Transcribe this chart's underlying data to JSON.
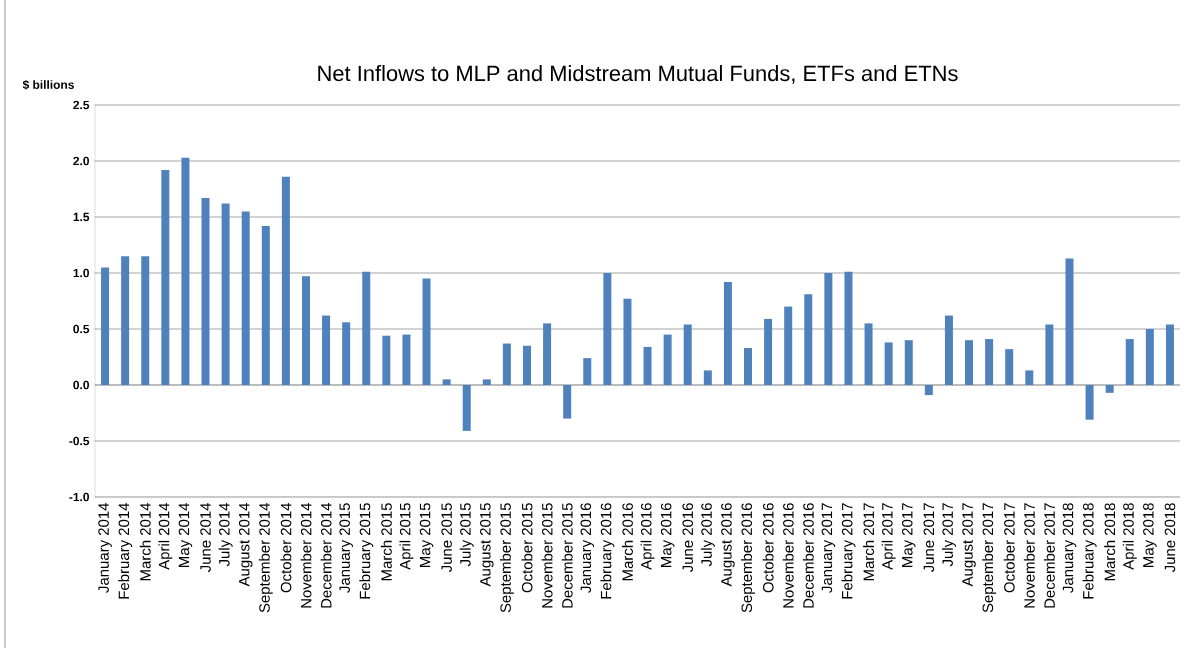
{
  "chart_data": {
    "type": "bar",
    "title": "Net Inflows to MLP and Midstream Mutual Funds, ETFs and ETNs",
    "ylabel": "$ billions",
    "categories": [
      "January 2014",
      "February 2014",
      "March 2014",
      "April 2014",
      "May 2014",
      "June 2014",
      "July 2014",
      "August 2014",
      "September 2014",
      "October 2014",
      "November 2014",
      "December 2014",
      "January 2015",
      "February 2015",
      "March 2015",
      "April 2015",
      "May 2015",
      "June 2015",
      "July 2015",
      "August 2015",
      "September 2015",
      "October 2015",
      "November 2015",
      "December 2015",
      "January 2016",
      "February 2016",
      "March 2016",
      "April 2016",
      "May 2016",
      "June 2016",
      "July 2016",
      "August 2016",
      "September 2016",
      "October 2016",
      "November 2016",
      "December 2016",
      "January 2017",
      "February 2017",
      "March 2017",
      "April 2017",
      "May 2017",
      "June 2017",
      "July 2017",
      "August 2017",
      "September 2017",
      "October 2017",
      "November 2017",
      "December 2017",
      "January 2018",
      "February 2018",
      "March 2018",
      "April 2018",
      "May 2018",
      "June 2018"
    ],
    "values": [
      1.05,
      1.15,
      1.15,
      1.92,
      2.03,
      1.67,
      1.62,
      1.55,
      1.42,
      1.86,
      0.97,
      0.62,
      0.56,
      1.01,
      0.44,
      0.45,
      0.95,
      0.05,
      -0.41,
      0.05,
      0.37,
      0.35,
      0.55,
      -0.3,
      0.24,
      1.0,
      0.77,
      0.34,
      0.45,
      0.54,
      0.13,
      0.92,
      0.33,
      0.59,
      0.7,
      0.81,
      1.0,
      1.01,
      0.55,
      0.38,
      0.4,
      -0.09,
      0.62,
      0.4,
      0.41,
      0.32,
      0.13,
      0.54,
      1.13,
      -0.31,
      -0.07,
      0.41,
      0.5,
      0.54
    ],
    "color": "#4f81bd",
    "ylim": [
      -1.0,
      2.5
    ],
    "yticks": [
      {
        "value": -1.0,
        "label": "-1.0"
      },
      {
        "value": -0.5,
        "label": "-0.5"
      },
      {
        "value": 0.0,
        "label": "0.0"
      },
      {
        "value": 0.5,
        "label": "0.5"
      },
      {
        "value": 1.0,
        "label": "1.0"
      },
      {
        "value": 1.5,
        "label": "1.5"
      },
      {
        "value": 2.0,
        "label": "2.0"
      },
      {
        "value": 2.5,
        "label": "2.5"
      }
    ],
    "grid": "y"
  }
}
